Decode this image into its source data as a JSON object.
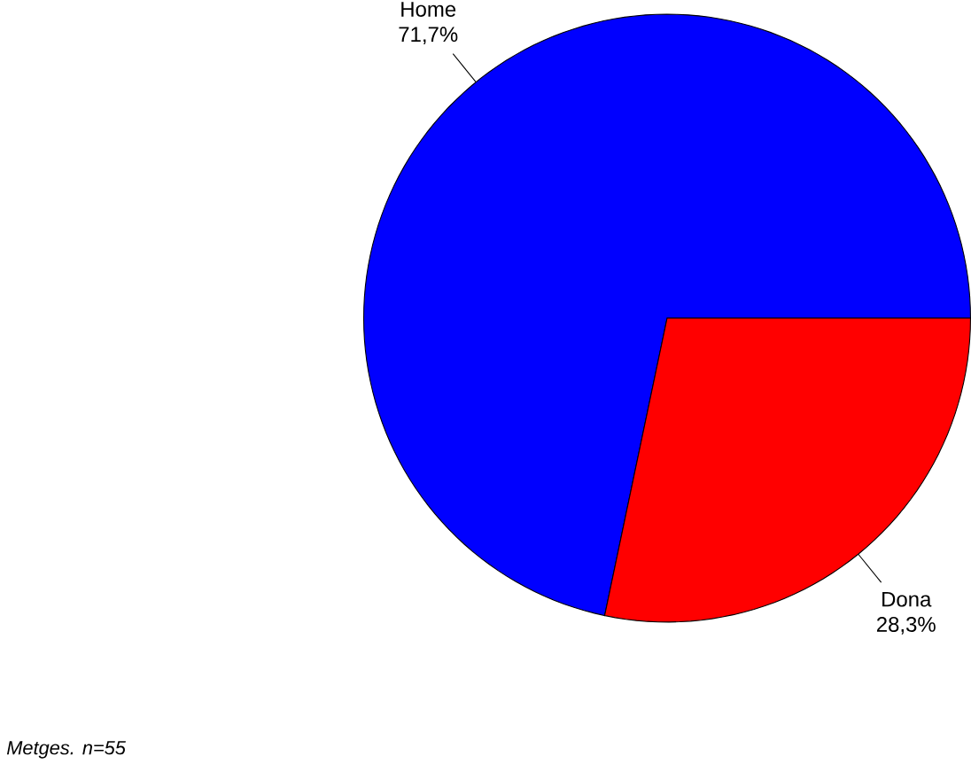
{
  "chart_data": {
    "type": "pie",
    "categories": [
      "Home",
      "Dona"
    ],
    "values": [
      71.7,
      28.3
    ],
    "value_labels": [
      "71,7%",
      "28,3%"
    ],
    "colors": [
      "#0000ff",
      "#ff0000"
    ],
    "annotations": [
      "Metges. n=55"
    ]
  }
}
